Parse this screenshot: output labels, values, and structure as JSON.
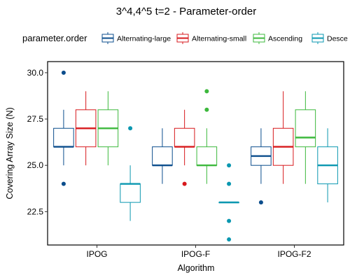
{
  "chart_data": {
    "type": "boxplot",
    "title": "3^4,4^5 t=2 - Parameter-order",
    "xlabel": "Algorithm",
    "ylabel": "Covering Array Size (N)",
    "ylim": [
      20.7,
      30.6
    ],
    "yticks": [
      22.5,
      25.0,
      27.5,
      30.0
    ],
    "ytick_labels": [
      "22.5",
      "25.0",
      "27.5",
      "30.0"
    ],
    "categories": [
      "IPOG",
      "IPOG-F",
      "IPOG-F2"
    ],
    "grid": false,
    "legend": {
      "title": "parameter.order",
      "placement": "top",
      "entries": [
        "Alternating-large",
        "Alternating-small",
        "Ascending",
        "Desce"
      ]
    },
    "series": [
      {
        "name": "Alternating-large",
        "color": "#0b4d8c",
        "boxes": [
          {
            "min": 25,
            "q1": 26,
            "median": 26,
            "q3": 27,
            "max": 28,
            "outliers": [
              30,
              24
            ]
          },
          {
            "min": 24,
            "q1": 25,
            "median": 25,
            "q3": 26,
            "max": 27,
            "outliers": []
          },
          {
            "min": 24,
            "q1": 25,
            "median": 25.5,
            "q3": 26,
            "max": 27,
            "outliers": [
              23
            ]
          }
        ]
      },
      {
        "name": "Alternating-small",
        "color": "#d7191c",
        "boxes": [
          {
            "min": 25,
            "q1": 26,
            "median": 27,
            "q3": 28,
            "max": 29,
            "outliers": []
          },
          {
            "min": 25,
            "q1": 26,
            "median": 26,
            "q3": 27,
            "max": 28,
            "outliers": [
              24
            ]
          },
          {
            "min": 24,
            "q1": 25,
            "median": 26,
            "q3": 27,
            "max": 29,
            "outliers": []
          }
        ]
      },
      {
        "name": "Ascending",
        "color": "#3cb83c",
        "boxes": [
          {
            "min": 25,
            "q1": 26,
            "median": 27,
            "q3": 28,
            "max": 29,
            "outliers": []
          },
          {
            "min": 24,
            "q1": 25,
            "median": 25,
            "q3": 26,
            "max": 27,
            "outliers": [
              29,
              28
            ]
          },
          {
            "min": 24,
            "q1": 26,
            "median": 26.5,
            "q3": 28,
            "max": 29,
            "outliers": []
          }
        ]
      },
      {
        "name": "Desce",
        "color": "#0a97b0",
        "boxes": [
          {
            "min": 22,
            "q1": 23,
            "median": 24,
            "q3": 24,
            "max": 25,
            "outliers": [
              27
            ]
          },
          {
            "min": 23,
            "q1": 23,
            "median": 23,
            "q3": 23,
            "max": 23,
            "outliers": [
              25,
              24,
              22,
              21
            ]
          },
          {
            "min": 23,
            "q1": 24,
            "median": 25,
            "q3": 26,
            "max": 27,
            "outliers": []
          }
        ]
      }
    ]
  }
}
